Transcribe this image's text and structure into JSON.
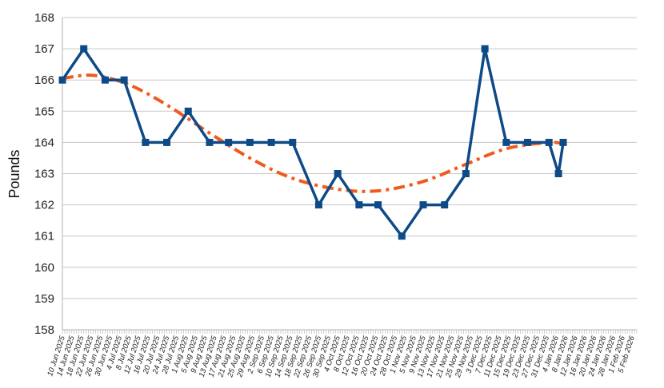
{
  "chart_data": {
    "type": "line",
    "ylabel": "Pounds",
    "xlabel": "",
    "ylim": [
      158,
      168
    ],
    "yticks": [
      158,
      159,
      160,
      161,
      162,
      163,
      164,
      165,
      166,
      167,
      168
    ],
    "grid": "horizontal",
    "x_tick_labels": [
      "10 Jun 2025",
      "14 Jun 2025",
      "18 Jun 2025",
      "22 Jun 2025",
      "26 Jun 2025",
      "30 Jun 2025",
      "4 Jul 2025",
      "8 Jul 2025",
      "12 Jul 2025",
      "16 Jul 2025",
      "20 Jul 2025",
      "24 Jul 2025",
      "28 Jul 2025",
      "1 Aug 2025",
      "5 Aug 2025",
      "9 Aug 2025",
      "13 Aug 2025",
      "17 Aug 2025",
      "21 Aug 2025",
      "25 Aug 2025",
      "29 Aug 2025",
      "2 Sep 2025",
      "6 Sep 2025",
      "10 Sep 2025",
      "14 Sep 2025",
      "18 Sep 2025",
      "22 Sep 2025",
      "26 Sep 2025",
      "30 Sep 2025",
      "4 Oct 2025",
      "8 Oct 2025",
      "12 Oct 2025",
      "16 Oct 2025",
      "20 Oct 2025",
      "24 Oct 2025",
      "28 Oct 2025",
      "1 Nov 2025",
      "5 Nov 2025",
      "9 Nov 2025",
      "13 Nov 2025",
      "17 Nov 2025",
      "21 Nov 2025",
      "25 Nov 2025",
      "29 Nov 2025",
      "3 Dec 2025",
      "7 Dec 2025",
      "11 Dec 2025",
      "15 Dec 2025",
      "19 Dec 2025",
      "23 Dec 2025",
      "27 Dec 2025",
      "31 Dec 2025",
      "4 Jan 2026",
      "8 Jan 2026",
      "12 Jan 2026",
      "16 Jan 2026",
      "20 Jan 2026",
      "24 Jan 2026",
      "28 Jan 2026",
      "1 Feb 2026",
      "5 Feb 2026"
    ],
    "x_range": [
      "2025-06-10",
      "2026-02-07"
    ],
    "series": [
      {
        "color": "#0d4a87",
        "marker": "square",
        "points": [
          {
            "x": "2025-06-10",
            "y": 166
          },
          {
            "x": "2025-06-19",
            "y": 167
          },
          {
            "x": "2025-06-28",
            "y": 166
          },
          {
            "x": "2025-07-06",
            "y": 166
          },
          {
            "x": "2025-07-15",
            "y": 164
          },
          {
            "x": "2025-07-24",
            "y": 164
          },
          {
            "x": "2025-08-02",
            "y": 165
          },
          {
            "x": "2025-08-11",
            "y": 164
          },
          {
            "x": "2025-08-19",
            "y": 164
          },
          {
            "x": "2025-08-28",
            "y": 164
          },
          {
            "x": "2025-09-06",
            "y": 164
          },
          {
            "x": "2025-09-15",
            "y": 164
          },
          {
            "x": "2025-09-26",
            "y": 162
          },
          {
            "x": "2025-10-04",
            "y": 163
          },
          {
            "x": "2025-10-13",
            "y": 162
          },
          {
            "x": "2025-10-21",
            "y": 162
          },
          {
            "x": "2025-10-31",
            "y": 161
          },
          {
            "x": "2025-11-09",
            "y": 162
          },
          {
            "x": "2025-11-18",
            "y": 162
          },
          {
            "x": "2025-11-27",
            "y": 163
          },
          {
            "x": "2025-12-05",
            "y": 167
          },
          {
            "x": "2025-12-14",
            "y": 164
          },
          {
            "x": "2025-12-23",
            "y": 164
          },
          {
            "x": "2026-01-01",
            "y": 164
          },
          {
            "x": "2026-01-05",
            "y": 163
          },
          {
            "x": "2026-01-07",
            "y": 164
          }
        ]
      }
    ],
    "trendline": {
      "color": "#f05a1e",
      "style": "dash-dot",
      "points": [
        {
          "x": "2025-06-10",
          "y": 166.05
        },
        {
          "x": "2025-06-23",
          "y": 166.15
        },
        {
          "x": "2025-07-08",
          "y": 165.85
        },
        {
          "x": "2025-07-24",
          "y": 165.2
        },
        {
          "x": "2025-08-11",
          "y": 164.3
        },
        {
          "x": "2025-08-28",
          "y": 163.5
        },
        {
          "x": "2025-09-15",
          "y": 162.85
        },
        {
          "x": "2025-10-04",
          "y": 162.5
        },
        {
          "x": "2025-10-21",
          "y": 162.45
        },
        {
          "x": "2025-11-09",
          "y": 162.75
        },
        {
          "x": "2025-11-27",
          "y": 163.3
        },
        {
          "x": "2025-12-14",
          "y": 163.8
        },
        {
          "x": "2026-01-01",
          "y": 164.0
        },
        {
          "x": "2026-01-07",
          "y": 163.95
        }
      ]
    },
    "colors": {
      "grid": "#c8c8c8",
      "axis": "#b0b0b0",
      "text": "#222222"
    }
  }
}
